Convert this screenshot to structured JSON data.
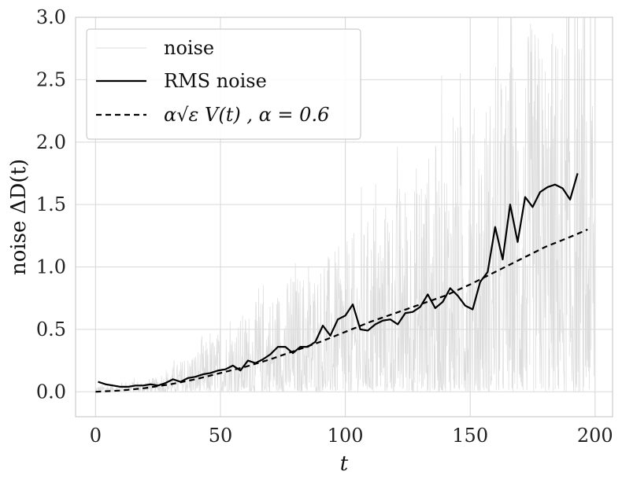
{
  "chart_data": {
    "type": "line",
    "title": "",
    "xlabel": "t",
    "ylabel": "noise ΔD(t)",
    "xlim": [
      -8,
      207
    ],
    "ylim": [
      -0.2,
      3.0
    ],
    "x_ticks": [
      0,
      50,
      100,
      150,
      200
    ],
    "x_tick_labels": [
      "0",
      "50",
      "100",
      "150",
      "200"
    ],
    "y_ticks": [
      0.0,
      0.5,
      1.0,
      1.5,
      2.0,
      2.5,
      3.0
    ],
    "y_tick_labels": [
      "0.0",
      "0.5",
      "1.0",
      "1.5",
      "2.0",
      "2.5",
      "3.0"
    ],
    "grid": true,
    "legend_position": "top-left",
    "series": [
      {
        "name": "noise",
        "style": "thin-solid",
        "color": "#dcdcdc",
        "description": "dense noisy trace, envelope grows with t",
        "x_range": [
          0,
          200
        ],
        "approx_upper_envelope": {
          "x": [
            0,
            25,
            50,
            75,
            100,
            125,
            150,
            175,
            200
          ],
          "y": [
            0.05,
            0.12,
            0.5,
            0.9,
            1.2,
            1.8,
            2.3,
            3.0,
            3.0
          ]
        }
      },
      {
        "name": "RMS noise",
        "style": "solid",
        "color": "#000000",
        "x": [
          1,
          4,
          7,
          10,
          13,
          16,
          19,
          22,
          25,
          28,
          31,
          34,
          37,
          40,
          43,
          46,
          49,
          52,
          55,
          58,
          61,
          64,
          67,
          70,
          73,
          76,
          79,
          82,
          85,
          88,
          91,
          94,
          97,
          100,
          103,
          106,
          109,
          112,
          115,
          118,
          121,
          124,
          127,
          130,
          133,
          136,
          139,
          142,
          145,
          148,
          151,
          154,
          157,
          160,
          163,
          166,
          169,
          172,
          175,
          178,
          181,
          184,
          187,
          190,
          193
        ],
        "y": [
          0.08,
          0.06,
          0.05,
          0.04,
          0.04,
          0.05,
          0.05,
          0.06,
          0.05,
          0.07,
          0.1,
          0.08,
          0.11,
          0.12,
          0.14,
          0.15,
          0.17,
          0.18,
          0.21,
          0.17,
          0.25,
          0.23,
          0.26,
          0.3,
          0.36,
          0.36,
          0.31,
          0.36,
          0.36,
          0.4,
          0.53,
          0.45,
          0.58,
          0.61,
          0.7,
          0.5,
          0.49,
          0.54,
          0.57,
          0.58,
          0.54,
          0.63,
          0.64,
          0.68,
          0.78,
          0.67,
          0.72,
          0.83,
          0.77,
          0.69,
          0.66,
          0.88,
          0.96,
          1.32,
          1.06,
          1.5,
          1.2,
          1.56,
          1.48,
          1.6,
          1.64,
          1.66,
          1.63,
          1.54,
          1.75
        ]
      },
      {
        "name": "α√ε V(t) , α = 0.6",
        "style": "dashed",
        "color": "#000000",
        "x": [
          0,
          10,
          20,
          30,
          40,
          50,
          60,
          70,
          80,
          90,
          100,
          110,
          120,
          130,
          140,
          150,
          160,
          170,
          180,
          190,
          197
        ],
        "y": [
          0.0,
          0.01,
          0.03,
          0.06,
          0.1,
          0.15,
          0.2,
          0.26,
          0.33,
          0.4,
          0.48,
          0.56,
          0.63,
          0.7,
          0.77,
          0.86,
          0.96,
          1.06,
          1.16,
          1.24,
          1.3
        ]
      }
    ]
  }
}
